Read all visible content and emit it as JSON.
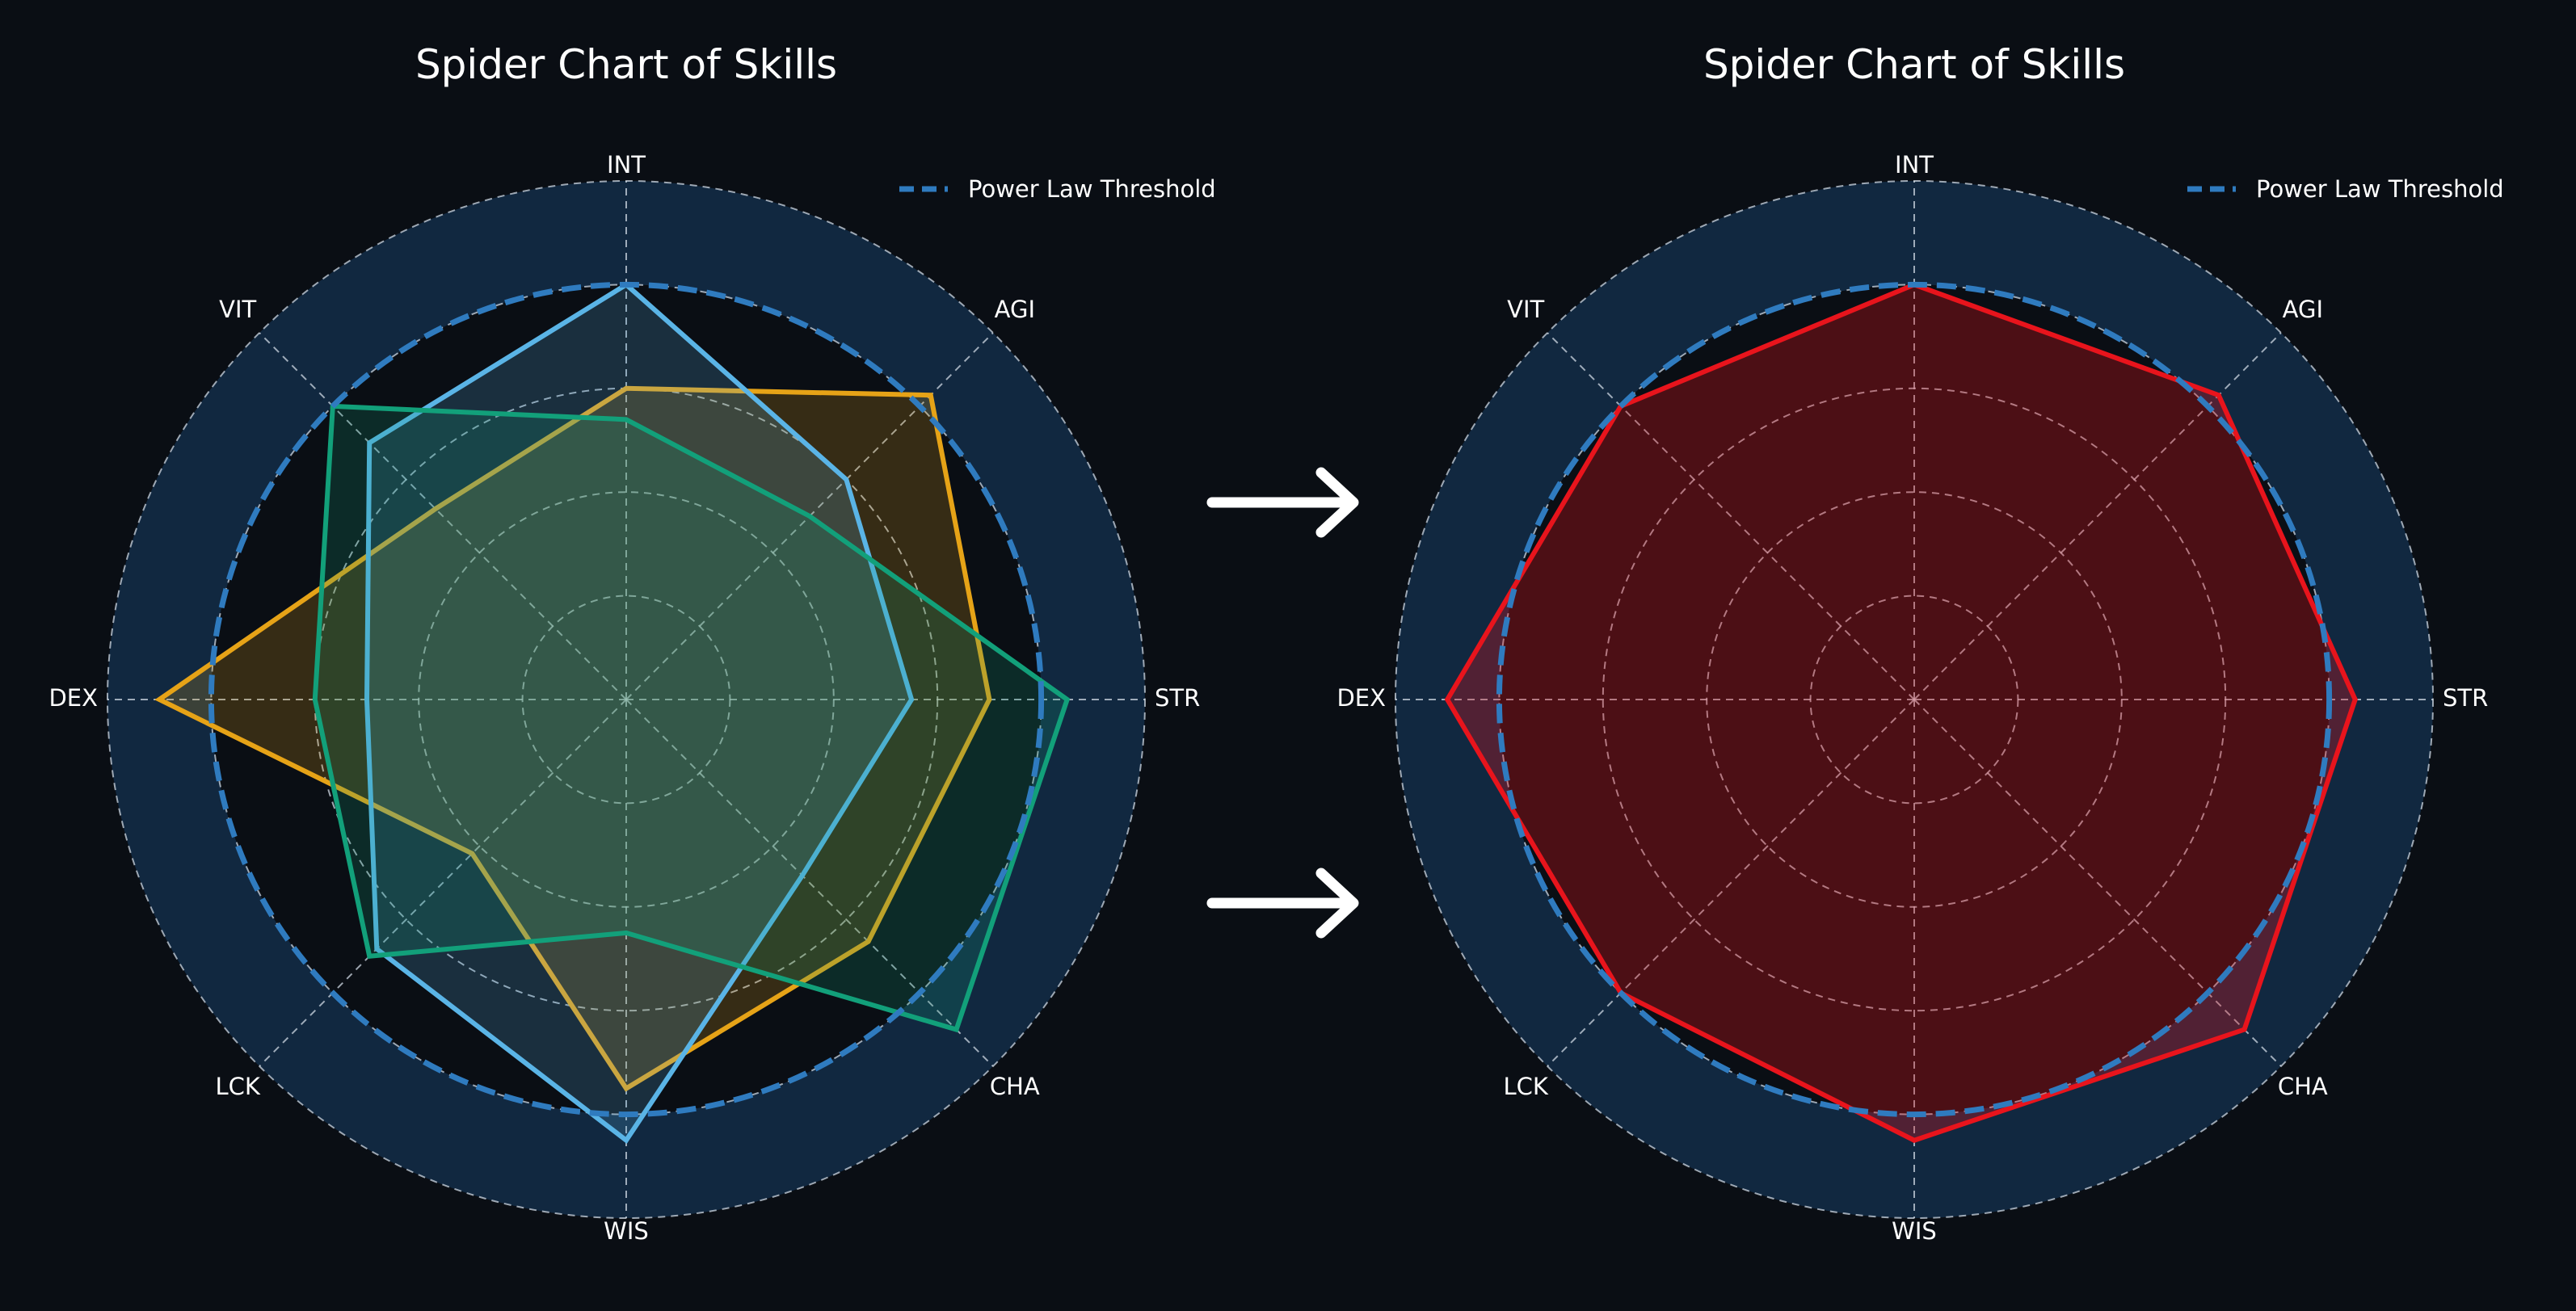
{
  "colors": {
    "background": "#0a0e14",
    "outer_band": "#112840",
    "threshold_line": "#2f7bbf",
    "grid": "#cfd8e3",
    "arrow": "#ffffff"
  },
  "chart_data": [
    {
      "type": "radar",
      "title": "Spider Chart of Skills",
      "axes": [
        "STR",
        "AGI",
        "INT",
        "VIT",
        "DEX",
        "LCK",
        "WIS",
        "CHA"
      ],
      "rmax": 10,
      "grid_levels": [
        2,
        4,
        6,
        8,
        10
      ],
      "grid": true,
      "legend": {
        "placement": "top-right",
        "entries": [
          "Power Law Threshold"
        ]
      },
      "threshold": {
        "name": "Power Law Threshold",
        "value": 8.0,
        "style": "dashed"
      },
      "series": [
        {
          "color": "#e6a317",
          "values": [
            7.0,
            8.3,
            6.0,
            5.2,
            9.0,
            4.2,
            7.5,
            6.6
          ]
        },
        {
          "color": "#5ab4e6",
          "values": [
            5.5,
            6.0,
            8.0,
            7.0,
            5.0,
            6.8,
            8.5,
            4.8
          ]
        },
        {
          "color": "#12a07a",
          "values": [
            8.5,
            5.0,
            5.4,
            8.0,
            6.0,
            7.0,
            4.5,
            9.0
          ]
        }
      ]
    },
    {
      "type": "radar",
      "title": "Spider Chart of Skills",
      "axes": [
        "STR",
        "AGI",
        "INT",
        "VIT",
        "DEX",
        "LCK",
        "WIS",
        "CHA"
      ],
      "rmax": 10,
      "grid_levels": [
        2,
        4,
        6,
        8,
        10
      ],
      "grid": true,
      "legend": {
        "placement": "top-right",
        "entries": [
          "Power Law Threshold"
        ]
      },
      "threshold": {
        "name": "Power Law Threshold",
        "value": 8.0,
        "style": "dashed"
      },
      "series": [
        {
          "color": "#e8141c",
          "values": [
            8.5,
            8.3,
            8.0,
            8.0,
            9.0,
            8.0,
            8.5,
            9.0
          ]
        }
      ]
    }
  ]
}
